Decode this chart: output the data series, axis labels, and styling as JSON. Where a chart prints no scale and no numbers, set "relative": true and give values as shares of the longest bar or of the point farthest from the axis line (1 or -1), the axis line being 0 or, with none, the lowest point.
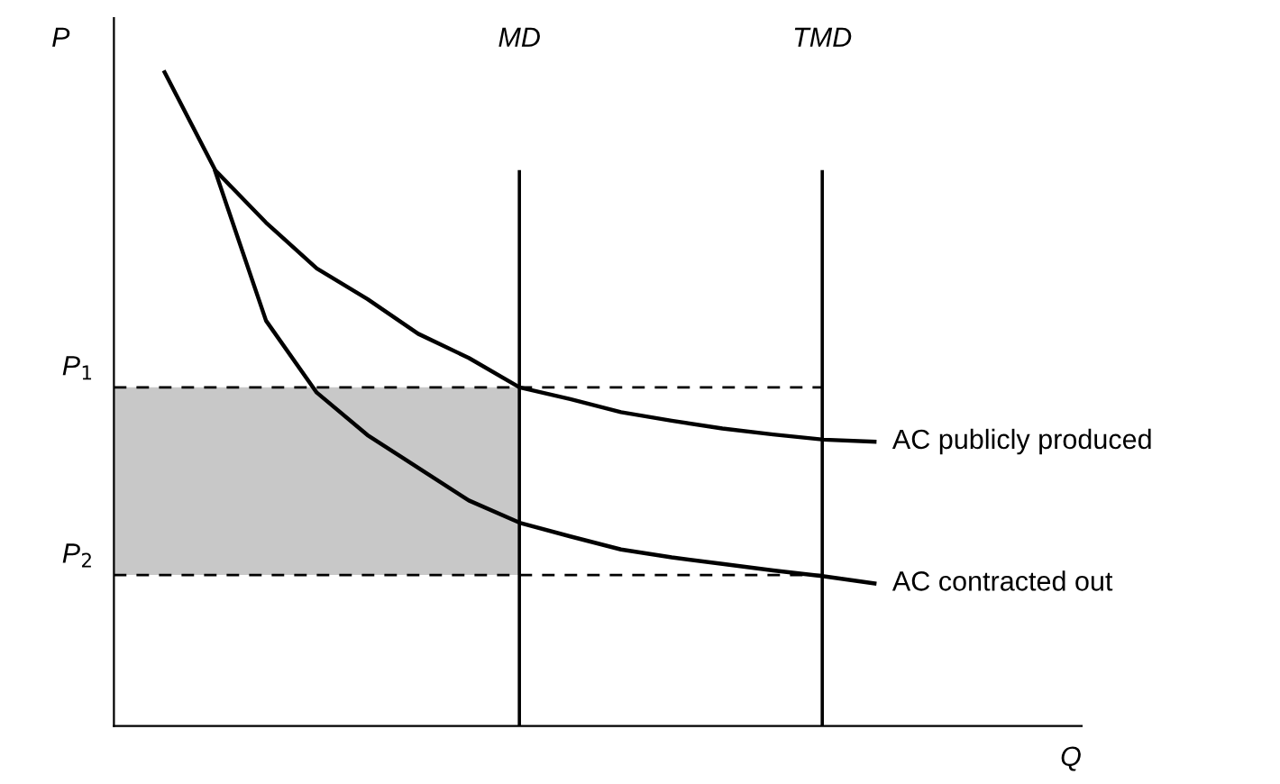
{
  "chart_data": {
    "type": "line",
    "relative": true,
    "ylabel": "P",
    "annotations": [
      "MD",
      "TMD",
      "Q"
    ],
    "grid": false,
    "legend": false,
    "marker": "none",
    "line_style": "solid",
    "categories": [
      null,
      null,
      null,
      null,
      null,
      null,
      null,
      null,
      null,
      null,
      null,
      null,
      null,
      null,
      null,
      null
    ],
    "series": [
      {
        "name": "AC publicly produced",
        "color": "#000000",
        "values": [
          null,
          1,
          0.85,
          0.77,
          0.7,
          0.653,
          0.6,
          0.563,
          0.518,
          0.5,
          0.48,
          0.467,
          0.455,
          0.446,
          0.438,
          0.435
        ]
      },
      {
        "name": "AC contracted out",
        "color": "#000000",
        "values": [
          null,
          null,
          0.848,
          0.62,
          0.51,
          0.445,
          0.395,
          0.345,
          0.311,
          0.29,
          0.27,
          0.258,
          0.248,
          0.238,
          0.229,
          0.218
        ]
      }
    ],
    "ref_lines": [
      {
        "axis": "y",
        "value": 0.518,
        "label": "P$_{1}$",
        "color": "#000000",
        "line_style": "dashed"
      },
      {
        "axis": "y",
        "value": 0.231,
        "label": "P$_{2}$",
        "color": "#000000",
        "line_style": "dashed"
      }
    ],
    "bands": [
      {
        "axis": "y",
        "from": 0.231,
        "to": 0.518,
        "color": "#c8c8c8"
      }
    ]
  }
}
